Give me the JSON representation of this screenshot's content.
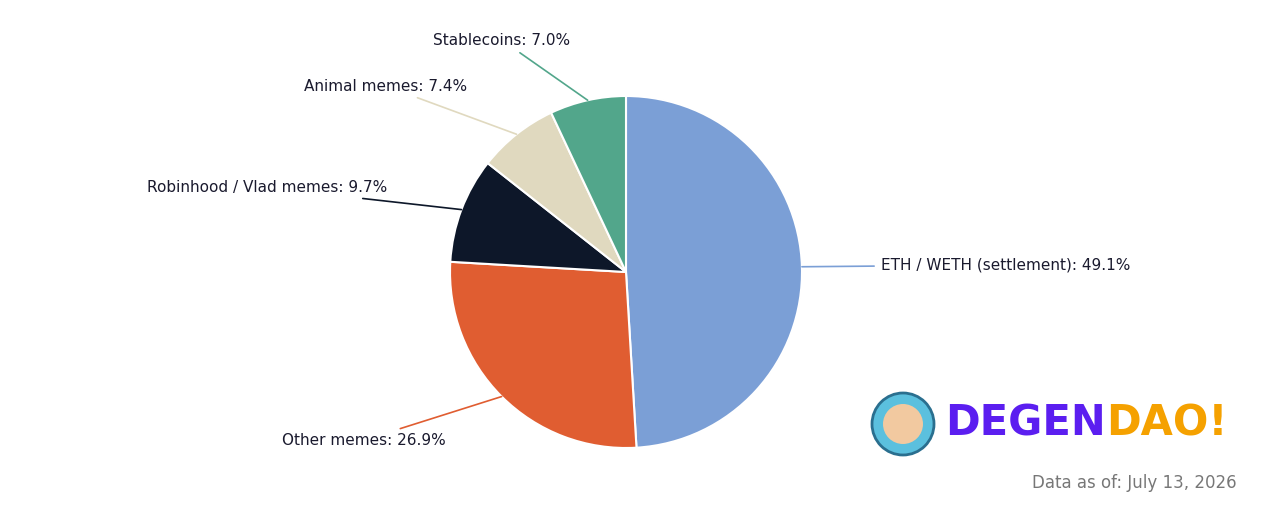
{
  "chart_data": {
    "type": "pie",
    "categories": [
      "ETH / WETH (settlement): 49.1%",
      "Other memes: 26.9%",
      "Robinhood / Vlad memes: 9.7%",
      "Animal memes: 7.4%",
      "Stablecoins: 7.0%"
    ],
    "values": [
      49.1,
      26.9,
      9.7,
      7.4,
      7.0
    ],
    "colors": [
      "#7b9fd6",
      "#e05d31",
      "#0d1729",
      "#e0d9bf",
      "#52a68b"
    ],
    "logo": [
      "DEGEN",
      "DAO!"
    ],
    "source": "Data as of: July 13, 2026"
  }
}
